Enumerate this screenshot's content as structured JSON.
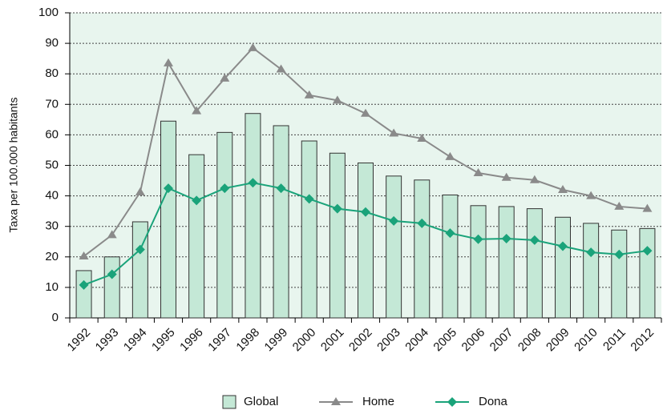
{
  "chart_data": {
    "type": "bar_line",
    "ylabel": "Taxa per 100.000 habitants",
    "categories": [
      "1992",
      "1993",
      "1994",
      "1995",
      "1996",
      "1997",
      "1998",
      "1999",
      "2000",
      "2001",
      "2002",
      "2003",
      "2004",
      "2005",
      "2006",
      "2007",
      "2008",
      "2009",
      "2010",
      "2011",
      "2012"
    ],
    "series": [
      {
        "name": "Global",
        "type": "bar",
        "color": "#c4e8d6",
        "values": [
          15.5,
          20,
          31.5,
          64.5,
          53.5,
          60.8,
          67,
          63,
          58,
          54,
          50.8,
          46.5,
          45.2,
          40.3,
          36.8,
          36.5,
          35.8,
          33,
          31,
          28.8,
          29.3
        ]
      },
      {
        "name": "Home",
        "type": "line",
        "marker": "triangle",
        "color": "#8a8a8a",
        "values": [
          20.2,
          27.2,
          41.2,
          83.5,
          67.8,
          78.5,
          88.5,
          81.5,
          73,
          71.3,
          67,
          60.5,
          58.8,
          52.8,
          47.5,
          46,
          45.2,
          42,
          40,
          36.5,
          35.8
        ]
      },
      {
        "name": "Dona",
        "type": "line",
        "marker": "diamond",
        "color": "#1aa37a",
        "values": [
          10.8,
          14.3,
          22.4,
          42.5,
          38.5,
          42.5,
          44.3,
          42.5,
          39,
          35.8,
          34.7,
          31.8,
          31,
          27.8,
          25.8,
          26,
          25.5,
          23.5,
          21.5,
          20.8,
          22
        ]
      }
    ],
    "ylim": [
      0,
      100
    ],
    "yticks": [
      0,
      10,
      20,
      30,
      40,
      50,
      60,
      70,
      80,
      90,
      100
    ],
    "grid": true,
    "legend": "bottom"
  }
}
